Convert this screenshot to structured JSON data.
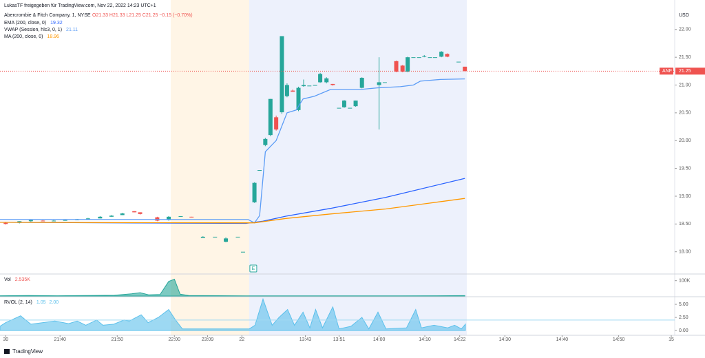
{
  "header": "LukasTF freigegeben für TradingView.com, Nov 22, 2022 14:23 UTC+1",
  "footer": "TradingView",
  "chart_data": [
    {
      "type": "candlestick",
      "title": "Abercrombie & Fitch Company, 1, NYSE",
      "ohlc_label": "O21.33 H21.33 L21.25 C21.25 −0.15 (−0.70%)",
      "currency": "USD",
      "up_color": "#26a69a",
      "down_color": "#ef5350",
      "x": [
        1.0,
        3.4,
        5.4,
        7.5,
        9.4,
        11.4,
        13.5,
        15.4,
        17.5,
        19.5,
        21.4,
        23.5,
        24.5,
        27.5,
        29.5,
        31.6,
        33.5,
        35.5,
        37.6,
        39.5,
        41.6,
        42.5,
        44.5,
        45.4,
        46.4,
        47.3,
        48.3,
        49.3,
        50.2,
        51.2,
        52.2,
        53.1,
        54.1,
        55.1,
        56.0,
        57.1,
        58.2,
        59.3,
        60.2,
        61.2,
        62.2,
        63.3,
        66.3,
        67.3,
        69.3,
        70.4,
        71.3,
        72.3,
        73.3,
        74.2,
        75.2,
        76.1,
        77.2,
        78.2,
        80.2,
        81.3
      ],
      "open": [
        18.52,
        18.52,
        18.55,
        18.56,
        18.55,
        18.56,
        18.57,
        18.58,
        18.6,
        18.63,
        18.66,
        18.73,
        18.71,
        18.62,
        18.57,
        18.64,
        18.63,
        18.25,
        18.27,
        18.18,
        18.27,
        18.0,
        18.89,
        19.47,
        19.92,
        20.1,
        20.42,
        20.51,
        20.8,
        20.9,
        20.55,
        20.98,
        20.99,
        21.0,
        21.05,
        21.05,
        21.02,
        20.59,
        20.6,
        20.59,
        20.62,
        20.95,
        21.0,
        21.05,
        21.43,
        21.35,
        21.24,
        21.5,
        21.5,
        21.52,
        21.5,
        21.5,
        21.51,
        21.56,
        21.42,
        21.33
      ],
      "high": [
        18.54,
        18.55,
        18.58,
        18.57,
        18.57,
        18.58,
        18.59,
        18.61,
        18.64,
        18.66,
        18.7,
        18.73,
        18.71,
        18.63,
        18.64,
        18.64,
        18.63,
        18.28,
        18.27,
        18.26,
        18.27,
        18.0,
        19.25,
        19.47,
        20.05,
        20.75,
        20.45,
        21.88,
        21.03,
        20.92,
        20.97,
        21.1,
        20.99,
        21.0,
        21.22,
        21.14,
        21.02,
        20.59,
        20.73,
        20.59,
        20.72,
        21.14,
        21.5,
        21.05,
        21.44,
        21.36,
        21.51,
        21.5,
        21.5,
        21.54,
        21.5,
        21.5,
        21.61,
        21.57,
        21.42,
        21.33
      ],
      "low": [
        18.49,
        18.51,
        18.54,
        18.55,
        18.55,
        18.56,
        18.57,
        18.58,
        18.6,
        18.63,
        18.66,
        18.71,
        18.67,
        18.55,
        18.56,
        18.63,
        18.62,
        18.25,
        18.27,
        18.17,
        18.27,
        18.0,
        18.88,
        19.47,
        19.9,
        20.08,
        20.18,
        20.48,
        20.78,
        20.88,
        20.53,
        20.97,
        20.99,
        21.0,
        21.04,
        21.03,
        20.99,
        20.59,
        20.59,
        20.59,
        20.61,
        20.94,
        20.2,
        21.05,
        21.23,
        21.23,
        21.23,
        21.5,
        21.5,
        21.5,
        21.5,
        21.5,
        21.5,
        21.5,
        21.42,
        21.25
      ],
      "close": [
        18.5,
        18.55,
        18.57,
        18.55,
        18.56,
        18.57,
        18.58,
        18.6,
        18.63,
        18.65,
        18.69,
        18.71,
        18.68,
        18.56,
        18.63,
        18.64,
        18.62,
        18.27,
        18.27,
        18.24,
        18.27,
        18.0,
        19.24,
        19.47,
        20.03,
        20.75,
        20.2,
        21.88,
        21.0,
        20.88,
        20.95,
        21.0,
        20.99,
        21.0,
        21.2,
        21.12,
        21.0,
        20.59,
        20.72,
        20.59,
        20.72,
        21.13,
        21.05,
        21.05,
        21.24,
        21.24,
        21.5,
        21.5,
        21.5,
        21.52,
        21.5,
        21.5,
        21.6,
        21.51,
        21.42,
        21.25
      ],
      "series": [
        {
          "name": "EMA (200, close, 0)",
          "legend_value": "19.32",
          "color": "#2962ff",
          "x": [
            0,
            43,
            46,
            50,
            57.8,
            67.5,
            81.3
          ],
          "values": [
            18.53,
            18.51,
            18.55,
            18.64,
            18.78,
            18.98,
            19.32
          ]
        },
        {
          "name": "VWAP (Session, hlc3, 0, 1)",
          "legend_value": "21.11",
          "color": "#5b9cf6",
          "x": [
            0,
            43.4,
            44.5,
            45.4,
            46.4,
            48.3,
            50.2,
            51.8,
            53,
            55,
            57.8,
            63,
            66,
            70,
            72.3,
            73.5,
            77,
            81.3
          ],
          "values": [
            18.58,
            18.58,
            18.52,
            18.65,
            19.8,
            20.0,
            20.5,
            20.55,
            20.75,
            20.8,
            20.92,
            20.92,
            20.95,
            20.97,
            21.0,
            21.07,
            21.1,
            21.11
          ]
        },
        {
          "name": "MA (200, close, 0)",
          "legend_value": "18.96",
          "color": "#ff9800",
          "x": [
            0,
            43,
            44.5,
            50,
            57.8,
            67.5,
            74.7,
            81.3
          ],
          "values": [
            18.53,
            18.52,
            18.52,
            18.6,
            18.68,
            18.77,
            18.87,
            18.96
          ]
        }
      ],
      "price_line": {
        "label": "ANF",
        "value": 21.25,
        "color": "#ef5350"
      },
      "event_marker": {
        "label": "E",
        "x": 44.3
      },
      "xlim": [
        0,
        118
      ],
      "xticks": [
        {
          "value": 1,
          "label": "30"
        },
        {
          "value": 10.5,
          "label": "21:40"
        },
        {
          "value": 20.5,
          "label": "21:50"
        },
        {
          "value": 30.5,
          "label": "22:00"
        },
        {
          "value": 36.3,
          "label": "23:09"
        },
        {
          "value": 42.3,
          "label": "22"
        },
        {
          "value": 53.4,
          "label": "13:43"
        },
        {
          "value": 59.3,
          "label": "13:51"
        },
        {
          "value": 66.3,
          "label": "14:00"
        },
        {
          "value": 74.3,
          "label": "14:10"
        },
        {
          "value": 80.4,
          "label": "14:22"
        },
        {
          "value": 88.3,
          "label": "14:30"
        },
        {
          "value": 98.3,
          "label": "14:40"
        },
        {
          "value": 108.2,
          "label": "14:50"
        },
        {
          "value": 117.4,
          "label": "15"
        }
      ],
      "ylim": [
        17.6,
        22.53
      ],
      "yticks": [
        {
          "value": 22,
          "label": "22.00"
        },
        {
          "value": 21.5,
          "label": "21.50"
        },
        {
          "value": 21,
          "label": "21.00"
        },
        {
          "value": 20.5,
          "label": "20.50"
        },
        {
          "value": 20,
          "label": "20.00"
        },
        {
          "value": 19.5,
          "label": "19.50"
        },
        {
          "value": 19,
          "label": "19.00"
        },
        {
          "value": 18.5,
          "label": "18.50"
        },
        {
          "value": 18,
          "label": "18.00"
        }
      ]
    },
    {
      "type": "area",
      "name": "Vol",
      "legend_value": "2.535K",
      "color": "#26a69a",
      "legend_color": "#ef5350",
      "x": [
        0,
        5,
        10,
        15,
        20,
        23,
        24.5,
        26,
        28,
        29.5,
        30.5,
        31.5,
        33,
        43,
        50,
        60,
        70,
        81.3
      ],
      "values": [
        2000,
        3000,
        2000,
        3000,
        5000,
        15000,
        22000,
        8000,
        10000,
        95000,
        110000,
        12000,
        3000,
        1000,
        1500,
        1000,
        1000,
        2535
      ],
      "ylim": [
        0,
        139000
      ],
      "yticks": [
        {
          "value": 100000,
          "label": "100K"
        }
      ]
    },
    {
      "type": "area",
      "name": "RVOL (2, 14)",
      "legend_value": "1.05",
      "color": "#5bc0eb",
      "threshold": {
        "value": 2,
        "label": "2.00",
        "color": "#9fd9f2"
      },
      "x": [
        0,
        1,
        3.6,
        5.4,
        7.5,
        9.6,
        12,
        13.5,
        15,
        16.9,
        18,
        19.9,
        21.7,
        22.6,
        24.7,
        25.9,
        27.7,
        29.5,
        30.7,
        31.9,
        43.6,
        44.6,
        46,
        47.6,
        48.8,
        50.3,
        51.5,
        53,
        54.2,
        55.2,
        56.4,
        58.2,
        59.3,
        61.4,
        63.3,
        64.5,
        66.1,
        67.5,
        71.1,
        72.7,
        73.7,
        75.9,
        78.3,
        79.5,
        80.7,
        81.4
      ],
      "values": [
        0.8,
        1.5,
        2.8,
        1.2,
        1.5,
        1.8,
        1.3,
        1.8,
        1.0,
        2.0,
        1.0,
        1.2,
        2.0,
        1.8,
        3.0,
        1.5,
        2.5,
        4.0,
        2.0,
        0.3,
        0.3,
        1.0,
        6.0,
        1.0,
        2.5,
        4.0,
        1.0,
        3.5,
        0.5,
        4.0,
        0.5,
        4.5,
        0.3,
        0.8,
        2.5,
        0.3,
        3.5,
        0.3,
        0.5,
        4.0,
        0.5,
        1.0,
        0.5,
        1.0,
        0.3,
        1.2
      ],
      "ylim": [
        -0.92,
        6.32
      ],
      "yticks": [
        {
          "value": 5,
          "label": "5.00"
        },
        {
          "value": 2.5,
          "label": "2.50"
        },
        {
          "value": 0,
          "label": "0.00"
        }
      ]
    }
  ]
}
